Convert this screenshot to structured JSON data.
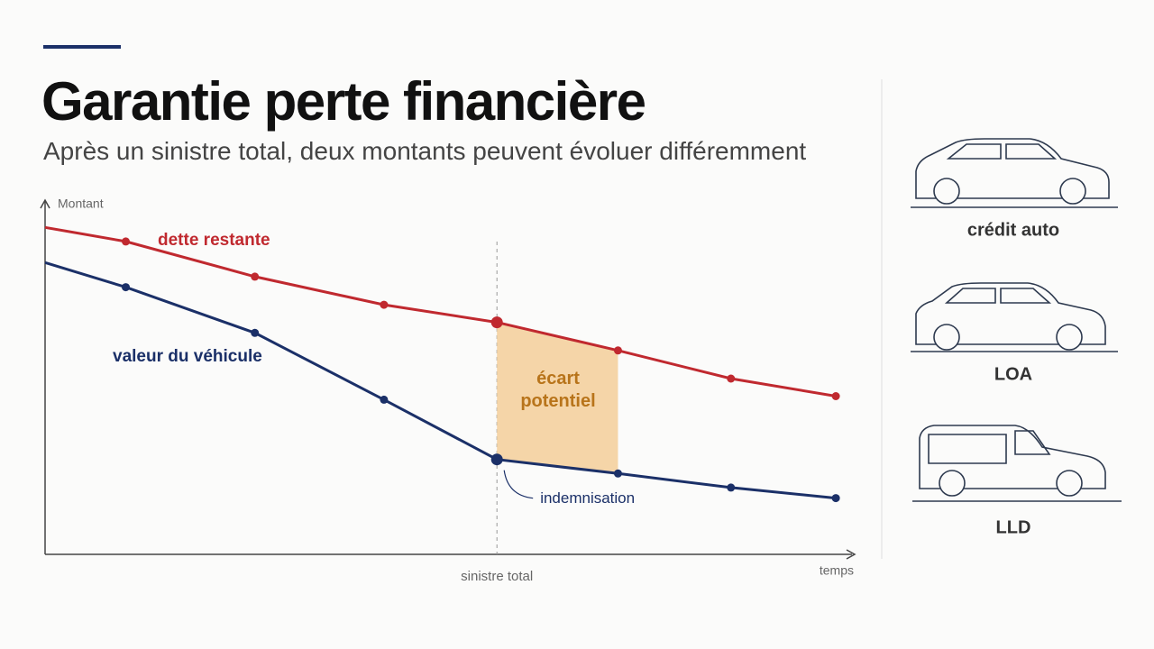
{
  "header": {
    "title": "Garantie perte financière",
    "subtitle": "Après un sinistre total, deux montants peuvent évoluer différemment"
  },
  "chart_data": {
    "type": "line",
    "x": [
      0,
      10,
      26,
      42,
      56,
      71,
      85,
      98
    ],
    "series": [
      {
        "name": "dette restante",
        "color": "#c0292f",
        "values": [
          93,
          89,
          79,
          71,
          66,
          58,
          50,
          45
        ]
      },
      {
        "name": "valeur du véhicule",
        "color": "#1b3068",
        "values": [
          83,
          76,
          63,
          44,
          27,
          23,
          19,
          16
        ]
      }
    ],
    "xlim": [
      0,
      100
    ],
    "ylim": [
      0,
      100
    ],
    "y_label": "Montant",
    "x_label": "temps",
    "event": {
      "text": "sinistre total",
      "x": 56
    },
    "gap": {
      "text": "écart potentiel",
      "color": "#f5d5a8"
    },
    "point_note": "indemnisation"
  },
  "side": {
    "items": [
      "crédit auto",
      "LOA",
      "LLD"
    ]
  }
}
